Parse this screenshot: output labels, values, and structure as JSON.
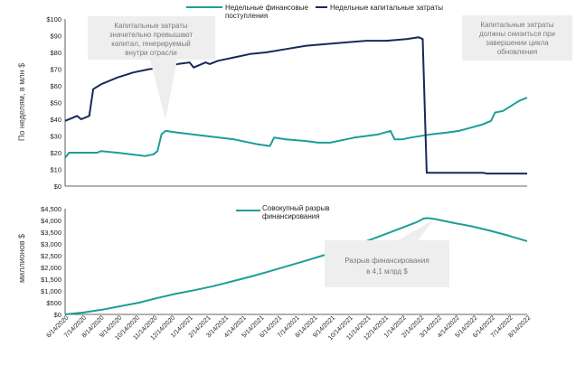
{
  "colors": {
    "financing": "#1a9e9a",
    "capex": "#162a55",
    "gap": "#1a9e9a",
    "axis": "#333333",
    "callout_bg": "#eeeeee",
    "callout_text": "#7a7a7a"
  },
  "chart_data": [
    {
      "type": "line",
      "ylabel": "По неделям, в млн $",
      "ylim": [
        0,
        100
      ],
      "y_ticks": [
        "$0",
        "$10",
        "$20",
        "$30",
        "$40",
        "$50",
        "$60",
        "$70",
        "$80",
        "$90",
        "$100"
      ],
      "legend_position": "top",
      "n_weeks": 115,
      "series": [
        {
          "name": "Недельные финансовые поступления",
          "color": "#1a9e9a",
          "points": [
            [
              0,
              17
            ],
            [
              1,
              20
            ],
            [
              8,
              20
            ],
            [
              9,
              21
            ],
            [
              13,
              20
            ],
            [
              20,
              18
            ],
            [
              22,
              19
            ],
            [
              23,
              21
            ],
            [
              24,
              31
            ],
            [
              25,
              33
            ],
            [
              28,
              32
            ],
            [
              35,
              30
            ],
            [
              42,
              28
            ],
            [
              48,
              25
            ],
            [
              51,
              24
            ],
            [
              52,
              29
            ],
            [
              55,
              28
            ],
            [
              60,
              27
            ],
            [
              63,
              26
            ],
            [
              66,
              26
            ],
            [
              72,
              29
            ],
            [
              78,
              31
            ],
            [
              81,
              33
            ],
            [
              82,
              28
            ],
            [
              84,
              28
            ],
            [
              86,
              29
            ],
            [
              91,
              31
            ],
            [
              95,
              32
            ],
            [
              98,
              33
            ],
            [
              101,
              35
            ],
            [
              104,
              37
            ],
            [
              106,
              39
            ],
            [
              107,
              44
            ],
            [
              109,
              45
            ],
            [
              113,
              51
            ],
            [
              115,
              53
            ]
          ]
        },
        {
          "name": "Недельные капитальные затраты",
          "color": "#162a55",
          "points": [
            [
              0,
              39
            ],
            [
              3,
              42
            ],
            [
              4,
              40
            ],
            [
              6,
              42
            ],
            [
              7,
              58
            ],
            [
              9,
              61
            ],
            [
              13,
              65
            ],
            [
              17,
              68
            ],
            [
              21,
              70
            ],
            [
              25,
              71
            ],
            [
              28,
              73
            ],
            [
              31,
              74
            ],
            [
              32,
              71
            ],
            [
              34,
              73
            ],
            [
              35,
              74
            ],
            [
              36,
              73
            ],
            [
              38,
              75
            ],
            [
              42,
              77
            ],
            [
              46,
              79
            ],
            [
              50,
              80
            ],
            [
              55,
              82
            ],
            [
              60,
              84
            ],
            [
              65,
              85
            ],
            [
              70,
              86
            ],
            [
              75,
              87
            ],
            [
              80,
              87
            ],
            [
              85,
              88
            ],
            [
              88,
              89
            ],
            [
              89,
              88
            ],
            [
              90,
              8
            ],
            [
              96,
              8
            ],
            [
              100,
              8
            ],
            [
              104,
              8
            ],
            [
              105,
              7.5
            ],
            [
              115,
              7.5
            ]
          ]
        }
      ],
      "annotations": [
        {
          "text": [
            "Капитальные затраты",
            "значительно превышают",
            "капитал, генерируемый",
            "внутри отрасли"
          ]
        },
        {
          "text": [
            "Капитальные затраты",
            "должны снизиться при",
            "завершении цикла",
            "обновления"
          ]
        }
      ]
    },
    {
      "type": "area",
      "ylabel": "миллионов $",
      "ylim": [
        0,
        4500
      ],
      "y_ticks": [
        "$0",
        "$500",
        "$1,000",
        "$1,500",
        "$2,000",
        "$2,500",
        "$3,000",
        "$3,500",
        "$4,000",
        "$4,500"
      ],
      "legend_position": "top",
      "x_ticks": [
        "6/14/2020",
        "7/14/2020",
        "8/14/2020",
        "9/14/2020",
        "10/14/2020",
        "11/14/2020",
        "12/14/2020",
        "1/14/2021",
        "2/14/2021",
        "3/14/2021",
        "4/14/2021",
        "5/14/2021",
        "6/14/2021",
        "7/14/2021",
        "8/14/2021",
        "9/14/2021",
        "10/14/2021",
        "11/14/2021",
        "12/14/2021",
        "1/14/2022",
        "2/14/2022",
        "3/14/2022",
        "4/14/2022",
        "5/14/2022",
        "6/14/2022",
        "7/14/2022",
        "8/14/2022"
      ],
      "series": [
        {
          "name": "Совокупный разрыв финансирования",
          "color": "#1a9e9a",
          "points": [
            [
              0,
              0
            ],
            [
              5,
              80
            ],
            [
              10,
              200
            ],
            [
              15,
              350
            ],
            [
              20,
              500
            ],
            [
              25,
              700
            ],
            [
              30,
              880
            ],
            [
              35,
              1030
            ],
            [
              40,
              1200
            ],
            [
              45,
              1400
            ],
            [
              50,
              1600
            ],
            [
              55,
              1820
            ],
            [
              60,
              2050
            ],
            [
              65,
              2280
            ],
            [
              70,
              2520
            ],
            [
              75,
              2770
            ],
            [
              80,
              3030
            ],
            [
              85,
              3320
            ],
            [
              90,
              3620
            ],
            [
              95,
              3920
            ],
            [
              97,
              4080
            ],
            [
              98,
              4100
            ],
            [
              100,
              4060
            ],
            [
              105,
              3900
            ],
            [
              110,
              3750
            ],
            [
              115,
              3560
            ],
            [
              120,
              3350
            ],
            [
              125,
              3120
            ]
          ]
        }
      ],
      "annotations": [
        {
          "text": [
            "Разрыв финансирования",
            "в 4,1 млрд $"
          ]
        }
      ]
    }
  ]
}
